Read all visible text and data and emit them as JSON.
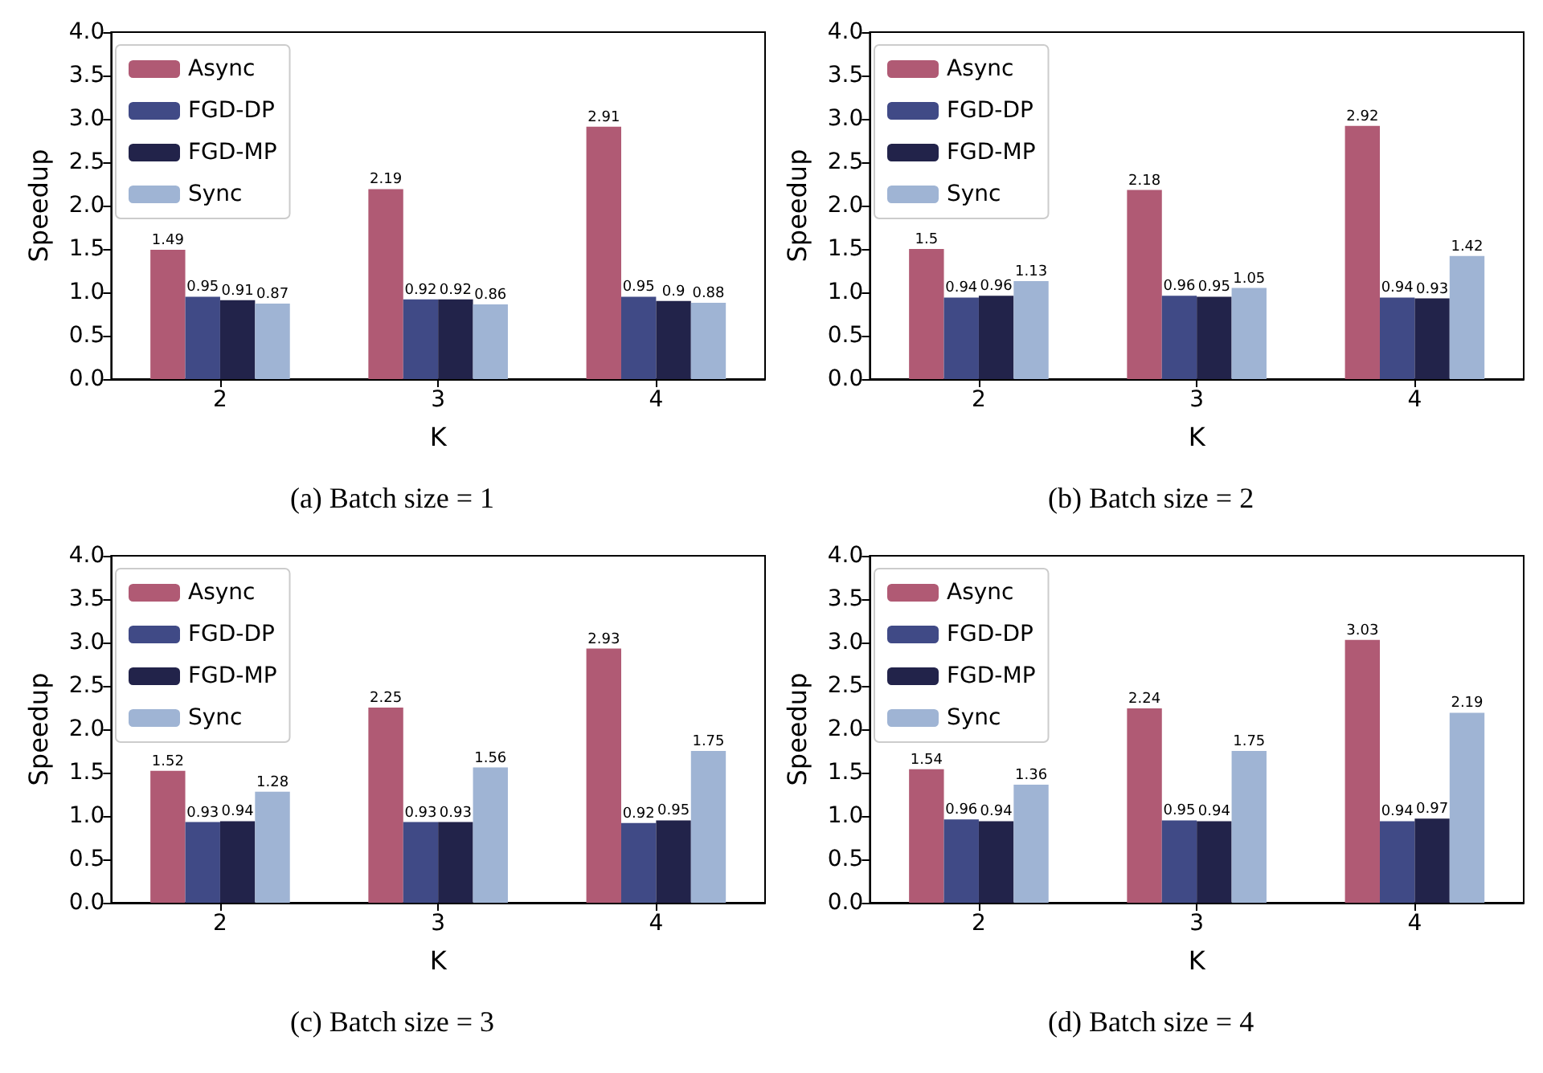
{
  "chart_data": [
    {
      "type": "bar",
      "title": "(a) Batch size = 1",
      "xlabel": "K",
      "ylabel": "Speedup",
      "categories": [
        "2",
        "3",
        "4"
      ],
      "ylim": [
        0,
        4
      ],
      "yticks": [
        {
          "value": 0,
          "label": "0.0"
        },
        {
          "value": 0.5,
          "label": "0.5"
        },
        {
          "value": 1,
          "label": "1.0"
        },
        {
          "value": 1.5,
          "label": "1.5"
        },
        {
          "value": 2,
          "label": "2.0"
        },
        {
          "value": 2.5,
          "label": "2.5"
        },
        {
          "value": 3,
          "label": "3.0"
        },
        {
          "value": 3.5,
          "label": "3.5"
        },
        {
          "value": 4,
          "label": "4.0"
        }
      ],
      "grid": false,
      "legend": "top left",
      "data_labels": true,
      "series": [
        {
          "name": "Async",
          "color": "#b05a74",
          "values": [
            1.49,
            2.19,
            2.91
          ]
        },
        {
          "name": "FGD-DP",
          "color": "#404a86",
          "values": [
            0.95,
            0.92,
            0.95
          ]
        },
        {
          "name": "FGD-MP",
          "color": "#22234a",
          "values": [
            0.91,
            0.92,
            0.9
          ]
        },
        {
          "name": "Sync",
          "color": "#9fb4d4",
          "values": [
            0.87,
            0.86,
            0.88
          ]
        }
      ]
    },
    {
      "type": "bar",
      "title": "(b) Batch size = 2",
      "xlabel": "K",
      "ylabel": "Speedup",
      "categories": [
        "2",
        "3",
        "4"
      ],
      "ylim": [
        0,
        4
      ],
      "yticks": [
        {
          "value": 0,
          "label": "0.0"
        },
        {
          "value": 0.5,
          "label": "0.5"
        },
        {
          "value": 1,
          "label": "1.0"
        },
        {
          "value": 1.5,
          "label": "1.5"
        },
        {
          "value": 2,
          "label": "2.0"
        },
        {
          "value": 2.5,
          "label": "2.5"
        },
        {
          "value": 3,
          "label": "3.0"
        },
        {
          "value": 3.5,
          "label": "3.5"
        },
        {
          "value": 4,
          "label": "4.0"
        }
      ],
      "grid": false,
      "legend": "top left",
      "data_labels": true,
      "series": [
        {
          "name": "Async",
          "color": "#b05a74",
          "values": [
            1.5,
            2.18,
            2.92
          ]
        },
        {
          "name": "FGD-DP",
          "color": "#404a86",
          "values": [
            0.94,
            0.96,
            0.94
          ]
        },
        {
          "name": "FGD-MP",
          "color": "#22234a",
          "values": [
            0.96,
            0.95,
            0.93
          ]
        },
        {
          "name": "Sync",
          "color": "#9fb4d4",
          "values": [
            1.13,
            1.05,
            1.42
          ]
        }
      ]
    },
    {
      "type": "bar",
      "title": "(c) Batch size = 3",
      "xlabel": "K",
      "ylabel": "Speedup",
      "categories": [
        "2",
        "3",
        "4"
      ],
      "ylim": [
        0,
        4
      ],
      "yticks": [
        {
          "value": 0,
          "label": "0.0"
        },
        {
          "value": 0.5,
          "label": "0.5"
        },
        {
          "value": 1,
          "label": "1.0"
        },
        {
          "value": 1.5,
          "label": "1.5"
        },
        {
          "value": 2,
          "label": "2.0"
        },
        {
          "value": 2.5,
          "label": "2.5"
        },
        {
          "value": 3,
          "label": "3.0"
        },
        {
          "value": 3.5,
          "label": "3.5"
        },
        {
          "value": 4,
          "label": "4.0"
        }
      ],
      "grid": false,
      "legend": "top left",
      "data_labels": true,
      "series": [
        {
          "name": "Async",
          "color": "#b05a74",
          "values": [
            1.52,
            2.25,
            2.93
          ]
        },
        {
          "name": "FGD-DP",
          "color": "#404a86",
          "values": [
            0.93,
            0.93,
            0.92
          ]
        },
        {
          "name": "FGD-MP",
          "color": "#22234a",
          "values": [
            0.94,
            0.93,
            0.95
          ]
        },
        {
          "name": "Sync",
          "color": "#9fb4d4",
          "values": [
            1.28,
            1.56,
            1.75
          ]
        }
      ]
    },
    {
      "type": "bar",
      "title": "(d) Batch size = 4",
      "xlabel": "K",
      "ylabel": "Speedup",
      "categories": [
        "2",
        "3",
        "4"
      ],
      "ylim": [
        0,
        4
      ],
      "yticks": [
        {
          "value": 0,
          "label": "0.0"
        },
        {
          "value": 0.5,
          "label": "0.5"
        },
        {
          "value": 1,
          "label": "1.0"
        },
        {
          "value": 1.5,
          "label": "1.5"
        },
        {
          "value": 2,
          "label": "2.0"
        },
        {
          "value": 2.5,
          "label": "2.5"
        },
        {
          "value": 3,
          "label": "3.0"
        },
        {
          "value": 3.5,
          "label": "3.5"
        },
        {
          "value": 4,
          "label": "4.0"
        }
      ],
      "grid": false,
      "legend": "top left",
      "data_labels": true,
      "series": [
        {
          "name": "Async",
          "color": "#b05a74",
          "values": [
            1.54,
            2.24,
            3.03
          ]
        },
        {
          "name": "FGD-DP",
          "color": "#404a86",
          "values": [
            0.96,
            0.95,
            0.94
          ]
        },
        {
          "name": "FGD-MP",
          "color": "#22234a",
          "values": [
            0.94,
            0.94,
            0.97
          ]
        },
        {
          "name": "Sync",
          "color": "#9fb4d4",
          "values": [
            1.36,
            1.75,
            2.19
          ]
        }
      ]
    }
  ]
}
